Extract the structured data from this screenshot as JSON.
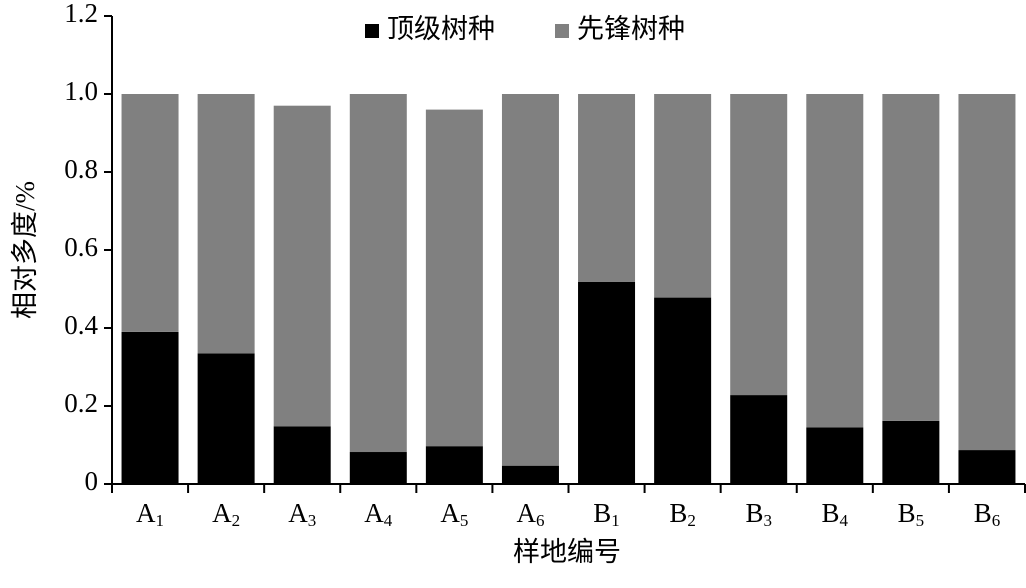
{
  "chart_data": {
    "type": "stacked_bar",
    "x_label": "样地编号",
    "y_label": "相对多度/%",
    "categories": [
      "A1",
      "A2",
      "A3",
      "A4",
      "A5",
      "A6",
      "B1",
      "B2",
      "B3",
      "B4",
      "B5",
      "B6"
    ],
    "series": [
      {
        "name": "顶级树种",
        "color": "#000000",
        "values": [
          0.39,
          0.335,
          0.148,
          0.082,
          0.097,
          0.047,
          0.518,
          0.478,
          0.228,
          0.145,
          0.162,
          0.087
        ]
      },
      {
        "name": "先锋树种",
        "color": "#808080",
        "values": [
          0.61,
          0.665,
          0.822,
          0.918,
          0.863,
          0.953,
          0.482,
          0.522,
          0.772,
          0.855,
          0.838,
          0.913
        ]
      }
    ],
    "ylim": [
      0,
      1.2
    ],
    "yticks": [
      0,
      0.2,
      0.4,
      0.6,
      0.8,
      {
        "value": 1,
        "label": "1.0"
      },
      1.2
    ],
    "grid": false,
    "legend": "top"
  }
}
